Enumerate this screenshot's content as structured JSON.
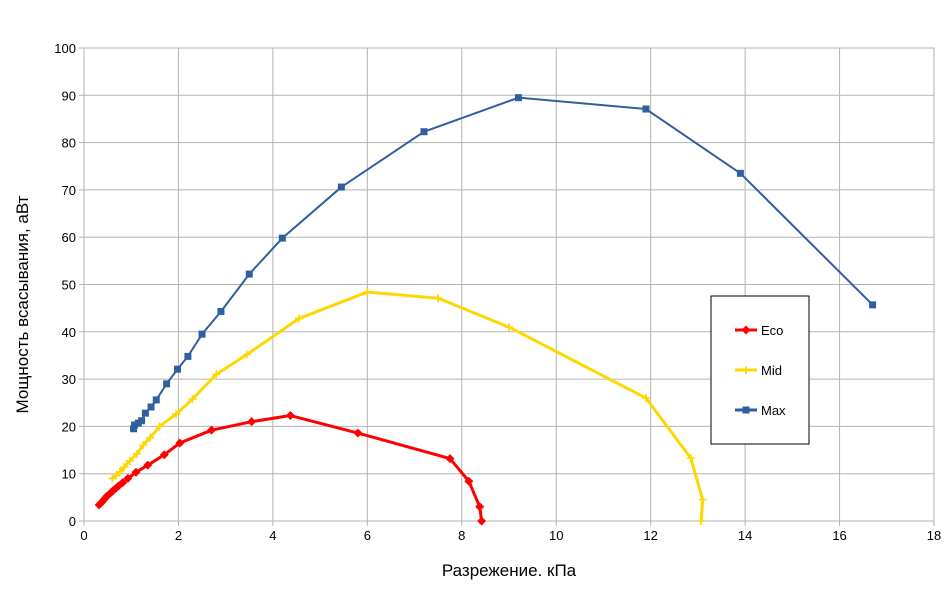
{
  "chart_data": {
    "type": "line",
    "title": "",
    "xlabel": "Разрежение. кПа",
    "ylabel": "Мощность всасывания, аВт",
    "xlim": [
      0,
      18
    ],
    "ylim": [
      0,
      100
    ],
    "x_ticks": [
      0,
      2,
      4,
      6,
      8,
      10,
      12,
      14,
      16,
      18
    ],
    "y_ticks": [
      0,
      10,
      20,
      30,
      40,
      50,
      60,
      70,
      80,
      90,
      100
    ],
    "x_tick_labels": [
      "0",
      "2",
      "4",
      "6",
      "8",
      "10",
      "12",
      "14",
      "16",
      "18"
    ],
    "y_tick_labels": [
      "0",
      "10",
      "20",
      "30",
      "40",
      "50",
      "60",
      "70",
      "80",
      "90",
      "100"
    ],
    "grid": true,
    "legend_position": "right",
    "series": [
      {
        "name": "Eco",
        "color": "#ff0000",
        "marker": "diamond",
        "points": [
          [
            0.32,
            3.4
          ],
          [
            0.38,
            4.0
          ],
          [
            0.43,
            4.6
          ],
          [
            0.48,
            5.2
          ],
          [
            0.54,
            5.7
          ],
          [
            0.6,
            6.3
          ],
          [
            0.66,
            6.8
          ],
          [
            0.73,
            7.4
          ],
          [
            0.82,
            8.1
          ],
          [
            0.93,
            9.0
          ],
          [
            1.1,
            10.3
          ],
          [
            1.35,
            11.8
          ],
          [
            1.7,
            14.0
          ],
          [
            2.03,
            16.5
          ],
          [
            2.7,
            19.2
          ],
          [
            3.55,
            21.0
          ],
          [
            4.37,
            22.3
          ],
          [
            5.8,
            18.6
          ],
          [
            7.75,
            13.2
          ],
          [
            8.15,
            8.4
          ],
          [
            8.38,
            3.0
          ],
          [
            8.42,
            0.0
          ]
        ]
      },
      {
        "name": "Mid",
        "color": "#ffd700",
        "marker": "plus",
        "points": [
          [
            0.6,
            9.0
          ],
          [
            0.68,
            9.6
          ],
          [
            0.76,
            10.4
          ],
          [
            0.85,
            11.4
          ],
          [
            0.97,
            12.7
          ],
          [
            1.12,
            14.2
          ],
          [
            1.25,
            16.0
          ],
          [
            1.4,
            17.6
          ],
          [
            1.6,
            20.0
          ],
          [
            1.95,
            22.6
          ],
          [
            2.3,
            25.8
          ],
          [
            2.8,
            31.0
          ],
          [
            3.45,
            35.2
          ],
          [
            4.55,
            42.8
          ],
          [
            6.0,
            48.4
          ],
          [
            7.5,
            47.1
          ],
          [
            9.0,
            41.0
          ],
          [
            11.9,
            26.0
          ],
          [
            12.85,
            13.3
          ],
          [
            13.1,
            4.5
          ],
          [
            13.07,
            0.0
          ]
        ]
      },
      {
        "name": "Max",
        "color": "#2f5f9e",
        "marker": "square",
        "points": [
          [
            1.05,
            19.5
          ],
          [
            1.07,
            20.3
          ],
          [
            1.15,
            20.7
          ],
          [
            1.22,
            21.2
          ],
          [
            1.3,
            22.8
          ],
          [
            1.42,
            24.1
          ],
          [
            1.53,
            25.6
          ],
          [
            1.75,
            29.0
          ],
          [
            1.98,
            32.1
          ],
          [
            2.2,
            34.8
          ],
          [
            2.5,
            39.5
          ],
          [
            2.9,
            44.3
          ],
          [
            3.5,
            52.2
          ],
          [
            4.2,
            59.8
          ],
          [
            5.45,
            70.6
          ],
          [
            7.2,
            82.3
          ],
          [
            9.2,
            89.5
          ],
          [
            11.9,
            87.1
          ],
          [
            13.9,
            73.5
          ],
          [
            16.7,
            45.7
          ]
        ]
      }
    ]
  }
}
